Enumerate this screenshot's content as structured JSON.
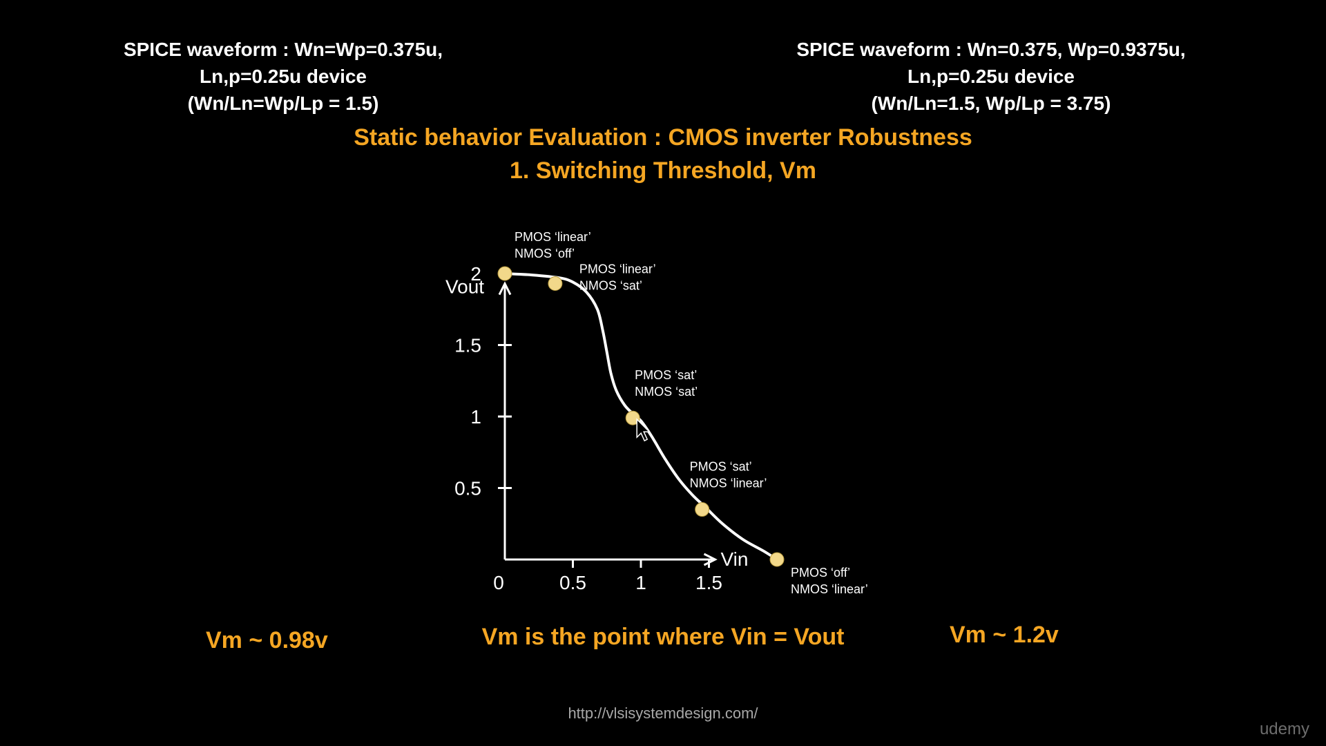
{
  "header_left": {
    "line1": "SPICE waveform : Wn=Wp=0.375u,",
    "line2": "Ln,p=0.25u device",
    "line3": "(Wn/Ln=Wp/Lp = 1.5)"
  },
  "header_right": {
    "line1": "SPICE waveform : Wn=0.375, Wp=0.9375u,",
    "line2": "Ln,p=0.25u device",
    "line3": "(Wn/Ln=1.5, Wp/Lp = 3.75)"
  },
  "title": {
    "line1": "Static behavior Evaluation : CMOS inverter Robustness",
    "line2": "1. Switching Threshold, Vm"
  },
  "chart_data": {
    "type": "line",
    "xlabel": "Vin",
    "ylabel": "Vout",
    "xlim": [
      0,
      2.5
    ],
    "ylim": [
      0,
      2.2
    ],
    "x_ticks": [
      0,
      0.5,
      1,
      1.5
    ],
    "x_tick_labels": [
      "0",
      "0.5",
      "1",
      "1.5"
    ],
    "y_ticks": [
      0.5,
      1,
      1.5,
      2
    ],
    "y_tick_labels": [
      "0.5",
      "1",
      "1.5",
      "2"
    ],
    "series": [
      {
        "x": [
          0,
          0.2,
          0.4,
          0.5,
          0.6,
          0.68,
          0.72,
          0.75,
          0.78,
          0.82,
          0.88,
          0.94,
          1.0,
          1.08,
          1.18,
          1.28,
          1.38,
          1.48,
          1.6,
          1.75,
          1.9,
          2.0
        ],
        "y": [
          2.0,
          1.99,
          1.97,
          1.94,
          1.87,
          1.75,
          1.6,
          1.45,
          1.3,
          1.18,
          1.08,
          1.02,
          0.97,
          0.86,
          0.7,
          0.56,
          0.45,
          0.36,
          0.25,
          0.14,
          0.06,
          0.0
        ]
      }
    ],
    "points": [
      {
        "x": 0.0,
        "y": 2.0,
        "label1": "PMOS ‘linear’",
        "label2": "NMOS ‘off’"
      },
      {
        "x": 0.37,
        "y": 1.93,
        "label1": "PMOS ‘linear’",
        "label2": "NMOS ‘sat’"
      },
      {
        "x": 0.94,
        "y": 0.99,
        "label1": "PMOS ‘sat’",
        "label2": "NMOS ‘sat’"
      },
      {
        "x": 1.45,
        "y": 0.35,
        "label1": "PMOS ‘sat’",
        "label2": "NMOS ‘linear’"
      },
      {
        "x": 2.0,
        "y": 0.0,
        "label1": "PMOS ‘off’",
        "label2": "NMOS ‘linear’"
      }
    ],
    "colors": {
      "curve": "#ffffff",
      "axis": "#ffffff",
      "point": "#f2d88a"
    }
  },
  "vm_left": "Vm ~ 0.98v",
  "vm_right": "Vm ~ 1.2v",
  "vm_definition": "Vm is the point where Vin = Vout",
  "url": "http://vlsisystemdesign.com/",
  "brand": "udemy"
}
